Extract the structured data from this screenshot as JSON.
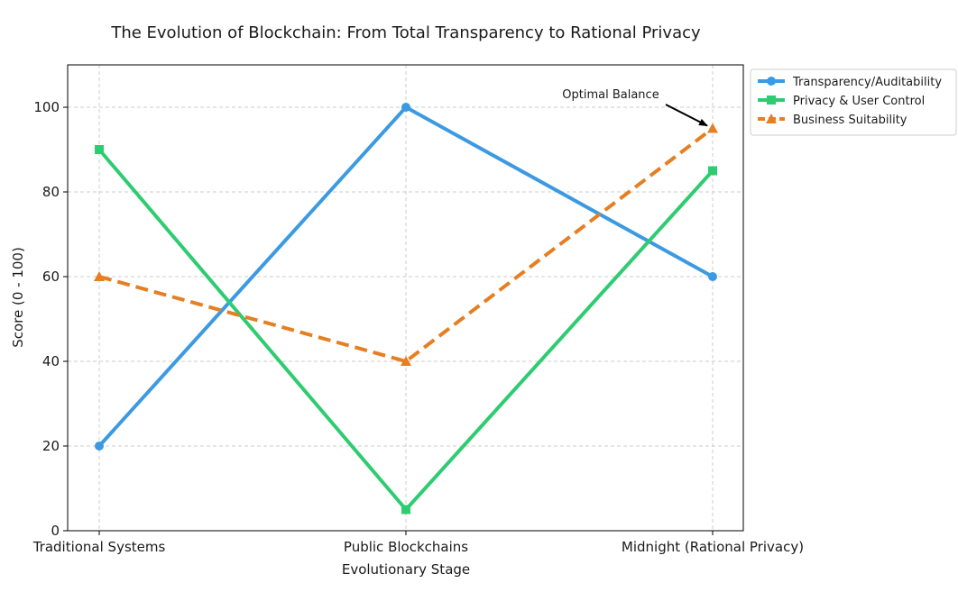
{
  "chart_data": {
    "type": "line",
    "title": "The Evolution of Blockchain: From Total Transparency to Rational Privacy",
    "xlabel": "Evolutionary Stage",
    "ylabel": "Score (0 - 100)",
    "categories": [
      "Traditional Systems",
      "Public Blockchains",
      "Midnight (Rational Privacy)"
    ],
    "ylim": [
      0,
      110
    ],
    "yticks": [
      0,
      20,
      40,
      60,
      80,
      100
    ],
    "grid": true,
    "legend_position": "outside-top-right",
    "series": [
      {
        "name": "Transparency/Auditability",
        "values": [
          20,
          100,
          60
        ],
        "color": "#3b9ae1",
        "marker": "circle",
        "style": "solid"
      },
      {
        "name": "Privacy & User Control",
        "values": [
          90,
          5,
          85
        ],
        "color": "#2ecc71",
        "marker": "square",
        "style": "solid"
      },
      {
        "name": "Business Suitability",
        "values": [
          60,
          40,
          95
        ],
        "color": "#e67e22",
        "marker": "triangle",
        "style": "dashed"
      }
    ],
    "annotations": [
      {
        "text": "Optimal Balance",
        "target_category_index": 2,
        "target_value": 95
      }
    ]
  }
}
